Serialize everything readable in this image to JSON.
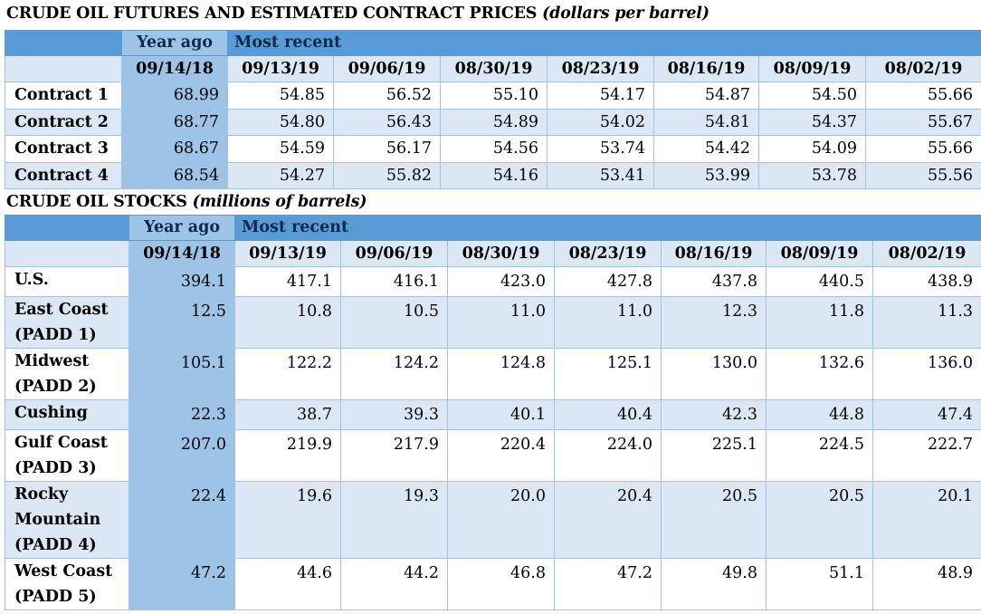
{
  "futures": {
    "title_main": "CRUDE OIL FUTURES AND ESTIMATED CONTRACT PRICES",
    "title_unit": "(dollars per barrel)",
    "year_ago_label": "Year ago",
    "most_recent_label": "Most recent",
    "dates": [
      "09/14/18",
      "09/13/19",
      "09/06/19",
      "08/30/19",
      "08/23/19",
      "08/16/19",
      "08/09/19",
      "08/02/19"
    ],
    "rows": [
      {
        "label": "Contract 1",
        "values": [
          "68.99",
          "54.85",
          "56.52",
          "55.10",
          "54.17",
          "54.87",
          "54.50",
          "55.66"
        ]
      },
      {
        "label": "Contract 2",
        "values": [
          "68.77",
          "54.80",
          "56.43",
          "54.89",
          "54.02",
          "54.81",
          "54.37",
          "55.67"
        ]
      },
      {
        "label": "Contract 3",
        "values": [
          "68.67",
          "54.59",
          "56.17",
          "54.56",
          "53.74",
          "54.42",
          "54.09",
          "55.66"
        ]
      },
      {
        "label": "Contract 4",
        "values": [
          "68.54",
          "54.27",
          "55.82",
          "54.16",
          "53.41",
          "53.99",
          "53.78",
          "55.56"
        ]
      }
    ]
  },
  "stocks": {
    "title_main": "CRUDE OIL STOCKS",
    "title_unit": "(millions of barrels)",
    "year_ago_label": "Year ago",
    "most_recent_label": "Most recent",
    "dates": [
      "09/14/18",
      "09/13/19",
      "09/06/19",
      "08/30/19",
      "08/23/19",
      "08/16/19",
      "08/09/19",
      "08/02/19"
    ],
    "rows": [
      {
        "label": "U.S.",
        "values": [
          "394.1",
          "417.1",
          "416.1",
          "423.0",
          "427.8",
          "437.8",
          "440.5",
          "438.9"
        ]
      },
      {
        "label": "East Coast (PADD 1)",
        "values": [
          "12.5",
          "10.8",
          "10.5",
          "11.0",
          "11.0",
          "12.3",
          "11.8",
          "11.3"
        ]
      },
      {
        "label": "Midwest (PADD 2)",
        "values": [
          "105.1",
          "122.2",
          "124.2",
          "124.8",
          "125.1",
          "130.0",
          "132.6",
          "136.0"
        ]
      },
      {
        "label": "Cushing",
        "values": [
          "22.3",
          "38.7",
          "39.3",
          "40.1",
          "40.4",
          "42.3",
          "44.8",
          "47.4"
        ]
      },
      {
        "label": "Gulf Coast (PADD 3)",
        "values": [
          "207.0",
          "219.9",
          "217.9",
          "220.4",
          "224.0",
          "225.1",
          "224.5",
          "222.7"
        ]
      },
      {
        "label": "Rocky Mountain (PADD 4)",
        "values": [
          "22.4",
          "19.6",
          "19.3",
          "20.0",
          "20.4",
          "20.5",
          "20.5",
          "20.1"
        ]
      },
      {
        "label": "West Coast (PADD 5)",
        "values": [
          "47.2",
          "44.6",
          "44.2",
          "46.8",
          "47.2",
          "49.8",
          "51.1",
          "48.9"
        ]
      }
    ]
  },
  "colors": {
    "header_band": "#5b9bd5",
    "year_ago_column": "#9dc3e6",
    "stripe": "#dbe7f5",
    "header_text": "#0b2b4c"
  }
}
